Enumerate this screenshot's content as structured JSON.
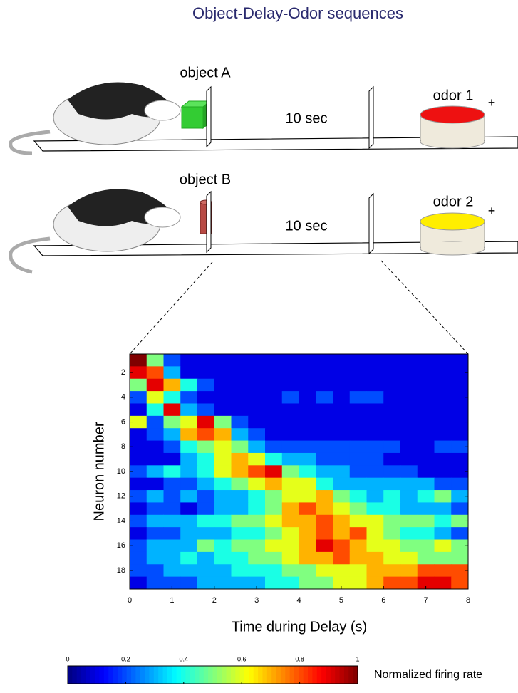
{
  "diagram": {
    "title": "Object-Delay-Odor sequences",
    "trial_1": {
      "object": "object A",
      "delay": "10 sec",
      "odor": "odor 1",
      "reward": "+"
    },
    "trial_2": {
      "object": "object B",
      "delay": "10 sec",
      "odor": "odor 2",
      "reward": "+"
    }
  },
  "chart_data": {
    "type": "heatmap",
    "xlabel": "Time during Delay (s)",
    "ylabel": "Neuron number",
    "xlim": [
      0,
      8
    ],
    "xticks": [
      0,
      1,
      2,
      3,
      4,
      5,
      6,
      7,
      8
    ],
    "ylim": [
      0.5,
      19.5
    ],
    "yticks": [
      2,
      4,
      6,
      8,
      10,
      12,
      14,
      16,
      18
    ],
    "colormap": "jet",
    "clim": [
      0,
      1
    ],
    "cticks": [
      0,
      0.2,
      0.4,
      0.6,
      0.8,
      1
    ],
    "colorbar_label": "Normalized firing rate",
    "values": [
      [
        1.0,
        0.5,
        0.2,
        0.1,
        0.1,
        0.1,
        0.1,
        0.1,
        0.1,
        0.1,
        0.1,
        0.1,
        0.1,
        0.1,
        0.1,
        0.1,
        0.1,
        0.1,
        0.1,
        0.1
      ],
      [
        0.9,
        0.8,
        0.3,
        0.1,
        0.1,
        0.1,
        0.1,
        0.1,
        0.1,
        0.1,
        0.1,
        0.1,
        0.1,
        0.1,
        0.1,
        0.1,
        0.1,
        0.1,
        0.1,
        0.1
      ],
      [
        0.5,
        0.9,
        0.7,
        0.4,
        0.2,
        0.1,
        0.1,
        0.1,
        0.1,
        0.1,
        0.1,
        0.1,
        0.1,
        0.1,
        0.1,
        0.1,
        0.1,
        0.1,
        0.1,
        0.1
      ],
      [
        0.2,
        0.6,
        0.4,
        0.2,
        0.1,
        0.1,
        0.1,
        0.1,
        0.1,
        0.2,
        0.1,
        0.2,
        0.1,
        0.2,
        0.2,
        0.1,
        0.1,
        0.1,
        0.1,
        0.1
      ],
      [
        0.1,
        0.4,
        0.9,
        0.3,
        0.2,
        0.1,
        0.1,
        0.1,
        0.1,
        0.1,
        0.1,
        0.1,
        0.1,
        0.1,
        0.1,
        0.1,
        0.1,
        0.1,
        0.1,
        0.1
      ],
      [
        0.6,
        0.2,
        0.5,
        0.6,
        0.9,
        0.5,
        0.2,
        0.1,
        0.1,
        0.1,
        0.1,
        0.1,
        0.1,
        0.1,
        0.1,
        0.1,
        0.1,
        0.1,
        0.1,
        0.1
      ],
      [
        0.1,
        0.2,
        0.3,
        0.7,
        0.8,
        0.7,
        0.3,
        0.2,
        0.1,
        0.1,
        0.1,
        0.1,
        0.1,
        0.1,
        0.1,
        0.1,
        0.1,
        0.1,
        0.1,
        0.1
      ],
      [
        0.1,
        0.1,
        0.2,
        0.4,
        0.5,
        0.6,
        0.5,
        0.3,
        0.2,
        0.2,
        0.2,
        0.2,
        0.2,
        0.2,
        0.2,
        0.2,
        0.1,
        0.1,
        0.2,
        0.2
      ],
      [
        0.1,
        0.1,
        0.1,
        0.3,
        0.4,
        0.6,
        0.7,
        0.6,
        0.4,
        0.3,
        0.3,
        0.2,
        0.2,
        0.2,
        0.2,
        0.1,
        0.1,
        0.1,
        0.1,
        0.1
      ],
      [
        0.2,
        0.3,
        0.4,
        0.3,
        0.4,
        0.6,
        0.7,
        0.8,
        0.9,
        0.5,
        0.4,
        0.3,
        0.3,
        0.2,
        0.2,
        0.2,
        0.2,
        0.1,
        0.1,
        0.1
      ],
      [
        0.1,
        0.1,
        0.2,
        0.2,
        0.3,
        0.4,
        0.5,
        0.6,
        0.7,
        0.6,
        0.6,
        0.4,
        0.3,
        0.3,
        0.3,
        0.3,
        0.3,
        0.3,
        0.2,
        0.2
      ],
      [
        0.2,
        0.3,
        0.2,
        0.3,
        0.2,
        0.3,
        0.3,
        0.4,
        0.5,
        0.6,
        0.6,
        0.7,
        0.5,
        0.4,
        0.3,
        0.4,
        0.3,
        0.4,
        0.5,
        0.3
      ],
      [
        0.1,
        0.2,
        0.2,
        0.1,
        0.2,
        0.3,
        0.3,
        0.4,
        0.5,
        0.7,
        0.8,
        0.7,
        0.6,
        0.5,
        0.4,
        0.4,
        0.3,
        0.3,
        0.3,
        0.2
      ],
      [
        0.2,
        0.3,
        0.3,
        0.3,
        0.4,
        0.4,
        0.5,
        0.5,
        0.6,
        0.7,
        0.7,
        0.8,
        0.7,
        0.6,
        0.6,
        0.5,
        0.5,
        0.5,
        0.4,
        0.5
      ],
      [
        0.1,
        0.2,
        0.2,
        0.3,
        0.3,
        0.3,
        0.4,
        0.4,
        0.5,
        0.6,
        0.7,
        0.8,
        0.7,
        0.8,
        0.6,
        0.5,
        0.4,
        0.4,
        0.3,
        0.2
      ],
      [
        0.2,
        0.3,
        0.3,
        0.3,
        0.5,
        0.4,
        0.5,
        0.5,
        0.6,
        0.6,
        0.7,
        0.9,
        0.8,
        0.7,
        0.6,
        0.6,
        0.5,
        0.5,
        0.6,
        0.5
      ],
      [
        0.2,
        0.3,
        0.3,
        0.4,
        0.3,
        0.4,
        0.4,
        0.5,
        0.5,
        0.6,
        0.7,
        0.7,
        0.8,
        0.7,
        0.7,
        0.6,
        0.6,
        0.5,
        0.5,
        0.5
      ],
      [
        0.2,
        0.2,
        0.3,
        0.3,
        0.3,
        0.3,
        0.4,
        0.4,
        0.4,
        0.5,
        0.5,
        0.6,
        0.6,
        0.6,
        0.7,
        0.7,
        0.7,
        0.8,
        0.8,
        0.8
      ],
      [
        0.1,
        0.2,
        0.2,
        0.2,
        0.3,
        0.3,
        0.3,
        0.3,
        0.4,
        0.4,
        0.5,
        0.5,
        0.6,
        0.6,
        0.7,
        0.8,
        0.8,
        0.9,
        0.9,
        0.8
      ]
    ]
  }
}
